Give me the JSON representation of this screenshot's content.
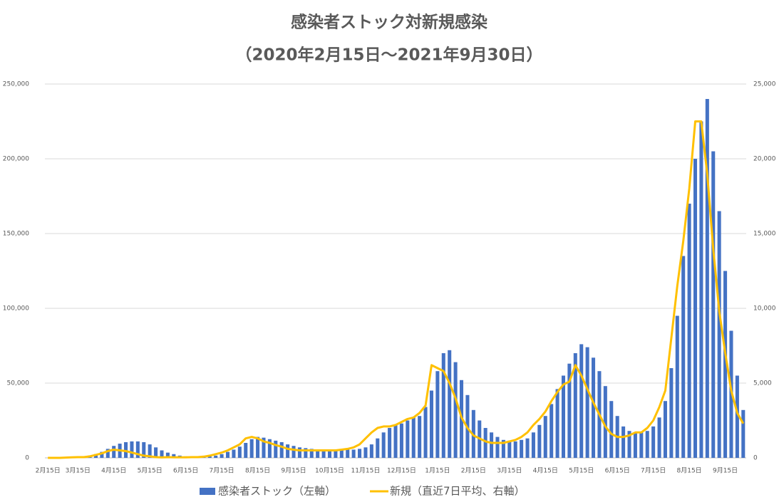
{
  "chart_data": {
    "type": "bar-line",
    "title": "感染者ストック対新規感染",
    "subtitle": "（2020年2月15日～2021年9月30日）",
    "categories": [
      "2月15日",
      null,
      null,
      null,
      null,
      "3月15日",
      null,
      null,
      null,
      null,
      null,
      "4月15日",
      null,
      null,
      null,
      null,
      null,
      "5月15日",
      null,
      null,
      null,
      null,
      null,
      "6月15日",
      null,
      null,
      null,
      null,
      null,
      "7月15日",
      null,
      null,
      null,
      null,
      null,
      "8月15日",
      null,
      null,
      null,
      null,
      null,
      "9月15日",
      null,
      null,
      null,
      null,
      null,
      "10月15日",
      null,
      null,
      null,
      null,
      null,
      "11月15日",
      null,
      null,
      null,
      null,
      null,
      "12月15日",
      null,
      null,
      null,
      null,
      null,
      "1月15日",
      null,
      null,
      null,
      null,
      null,
      "2月15日",
      null,
      null,
      null,
      null,
      null,
      "3月15日",
      null,
      null,
      null,
      null,
      null,
      "4月15日",
      null,
      null,
      null,
      null,
      null,
      "5月15日",
      null,
      null,
      null,
      null,
      null,
      "6月15日",
      null,
      null,
      null,
      null,
      null,
      "7月15日",
      null,
      null,
      null,
      null,
      null,
      "8月15日",
      null,
      null,
      null,
      null,
      null,
      "9月15日",
      null,
      null,
      null
    ],
    "series": [
      {
        "name": "感染者ストック（左軸）",
        "color": "#4472c4",
        "type": "bar",
        "values": [
          0,
          0,
          0,
          300,
          500,
          700,
          1000,
          1500,
          2500,
          4000,
          6000,
          8000,
          9500,
          10500,
          11000,
          11000,
          10500,
          9000,
          7000,
          5000,
          3500,
          2500,
          1500,
          1000,
          800,
          700,
          700,
          1000,
          1500,
          2500,
          4000,
          5500,
          7500,
          10000,
          12500,
          14000,
          13500,
          12500,
          11500,
          10500,
          9000,
          8000,
          7000,
          6500,
          6000,
          5500,
          5000,
          5000,
          5000,
          5000,
          5500,
          5500,
          6000,
          7000,
          9000,
          13000,
          17000,
          20000,
          22000,
          23000,
          25000,
          27000,
          28000,
          34000,
          45000,
          58000,
          70000,
          72000,
          64000,
          52000,
          42000,
          32000,
          25000,
          20000,
          17000,
          14000,
          12000,
          11500,
          11000,
          12000,
          13000,
          17000,
          22000,
          28000,
          36000,
          46000,
          55000,
          63000,
          70000,
          76000,
          74000,
          67000,
          58000,
          48000,
          38000,
          28000,
          21000,
          18000,
          17000,
          17000,
          18000,
          21000,
          27000,
          38000,
          60000,
          95000,
          135000,
          170000,
          200000,
          225000,
          240000,
          205000,
          165000,
          125000,
          85000,
          55000,
          32000
        ]
      },
      {
        "name": "新規（直近7日平均、右軸）",
        "color": "#ffc000",
        "type": "line",
        "axis": "y2",
        "values": [
          0,
          0,
          0,
          20,
          40,
          50,
          50,
          100,
          200,
          300,
          450,
          550,
          500,
          450,
          350,
          250,
          150,
          100,
          50,
          30,
          50,
          40,
          40,
          40,
          50,
          50,
          80,
          150,
          250,
          350,
          500,
          700,
          900,
          1300,
          1400,
          1300,
          1100,
          1000,
          850,
          750,
          600,
          550,
          500,
          500,
          500,
          500,
          500,
          500,
          500,
          550,
          600,
          700,
          900,
          1300,
          1700,
          2000,
          2100,
          2100,
          2200,
          2400,
          2600,
          2700,
          3000,
          3500,
          6200,
          6000,
          5800,
          5000,
          4000,
          2700,
          2000,
          1500,
          1300,
          1100,
          1000,
          1000,
          1000,
          1100,
          1200,
          1400,
          1700,
          2200,
          2600,
          3100,
          3800,
          4400,
          4900,
          5100,
          6200,
          5500,
          4600,
          3700,
          2900,
          2100,
          1600,
          1400,
          1400,
          1500,
          1700,
          1700,
          2000,
          2500,
          3400,
          4500,
          8000,
          11500,
          14500,
          18000,
          22500,
          22500,
          19000,
          14000,
          9800,
          7000,
          4500,
          3000,
          2300
        ]
      }
    ],
    "ylim": [
      0,
      250000
    ],
    "yticks": [
      0,
      {
        "value": 50000,
        "label": "50,000"
      },
      {
        "value": 100000,
        "label": "100,000"
      },
      {
        "value": 150000,
        "label": "150,000"
      },
      {
        "value": 200000,
        "label": "200,000"
      },
      {
        "value": 250000,
        "label": "250,000"
      }
    ],
    "y2lim": [
      0,
      25000
    ],
    "y2ticks": [
      0,
      {
        "value": 5000,
        "label": "5,000"
      },
      {
        "value": 10000,
        "label": "10,000"
      },
      {
        "value": 15000,
        "label": "15,000"
      },
      {
        "value": 20000,
        "label": "20,000"
      },
      {
        "value": 25000,
        "label": "25,000"
      }
    ],
    "grid": true,
    "legend": "bottom"
  }
}
